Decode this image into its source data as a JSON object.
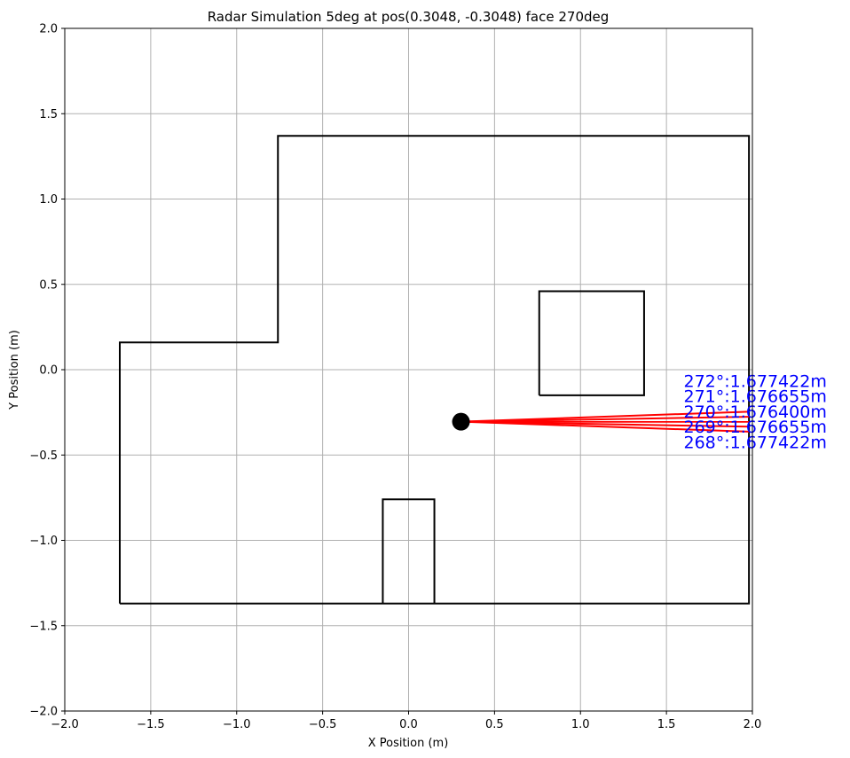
{
  "chart_data": {
    "type": "line",
    "title": "Radar Simulation 5deg at pos(0.3048, -0.3048) face 270deg",
    "xlabel": "X Position (m)",
    "ylabel": "Y Position (m)",
    "xlim": [
      -2.0,
      2.0
    ],
    "ylim": [
      -2.0,
      2.0
    ],
    "grid": true,
    "xticks": [
      "−2.0",
      "−1.5",
      "−1.0",
      "−0.5",
      "0.0",
      "0.5",
      "1.0",
      "1.5",
      "2.0"
    ],
    "yticks": [
      "−2.0",
      "−1.5",
      "−1.0",
      "−0.5",
      "0.0",
      "0.5",
      "1.0",
      "1.5",
      "2.0"
    ],
    "xtick_values": [
      -2.0,
      -1.5,
      -1.0,
      -0.5,
      0.0,
      0.5,
      1.0,
      1.5,
      2.0
    ],
    "ytick_values": [
      -2.0,
      -1.5,
      -1.0,
      -0.5,
      0.0,
      0.5,
      1.0,
      1.5,
      2.0
    ],
    "walls": {
      "outer": [
        [
          -1.68,
          -1.37
        ],
        [
          1.98,
          -1.37
        ],
        [
          1.98,
          1.37
        ],
        [
          -0.76,
          1.37
        ],
        [
          -0.76,
          0.16
        ],
        [
          -1.68,
          0.16
        ],
        [
          -1.68,
          -1.37
        ]
      ],
      "obstacle_upper_right": [
        [
          0.76,
          -0.15
        ],
        [
          1.37,
          -0.15
        ],
        [
          1.37,
          0.46
        ],
        [
          0.76,
          0.46
        ],
        [
          0.76,
          -0.15
        ]
      ],
      "obstacle_bottom": [
        [
          -0.15,
          -1.37
        ],
        [
          -0.15,
          -0.76
        ],
        [
          0.15,
          -0.76
        ],
        [
          0.15,
          -1.37
        ]
      ]
    },
    "radar": {
      "position": [
        0.3048,
        -0.3048
      ],
      "rays": [
        {
          "angle": 272,
          "distance": 1.677422,
          "end": [
            1.98,
            -0.246
          ],
          "label": "272°:1.677422m"
        },
        {
          "angle": 271,
          "distance": 1.676655,
          "end": [
            1.98,
            -0.276
          ],
          "label": "271°:1.676655m"
        },
        {
          "angle": 270,
          "distance": 1.6764,
          "end": [
            1.98,
            -0.305
          ],
          "label": "270°:1.676400m"
        },
        {
          "angle": 269,
          "distance": 1.676655,
          "end": [
            1.98,
            -0.334
          ],
          "label": "269°:1.676655m"
        },
        {
          "angle": 268,
          "distance": 1.677422,
          "end": [
            1.98,
            -0.363
          ],
          "label": "268°:1.677422m"
        }
      ],
      "label_positions": [
        [
          1.6,
          -0.1
        ],
        [
          1.6,
          -0.19
        ],
        [
          1.6,
          -0.28
        ],
        [
          1.6,
          -0.37
        ],
        [
          1.6,
          -0.46
        ]
      ]
    },
    "colors": {
      "walls": "#000000",
      "rays": "#ff0000",
      "labels": "#0000ff",
      "grid": "#b0b0b0",
      "radar": "#000000"
    }
  }
}
